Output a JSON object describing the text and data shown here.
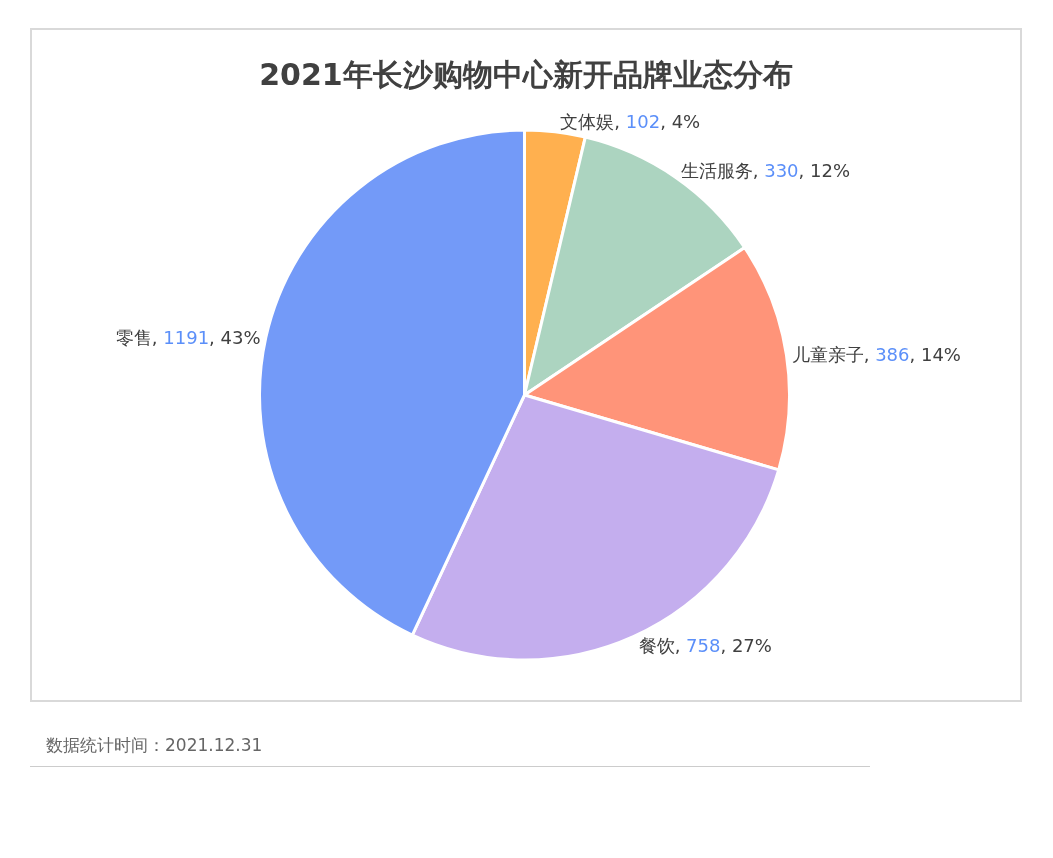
{
  "chart_data": {
    "type": "pie",
    "title": "2021年长沙购物中心新开品牌业态分布",
    "categories": [
      "文体娱",
      "生活服务",
      "儿童亲子",
      "餐饮",
      "零售"
    ],
    "values": [
      102,
      330,
      386,
      758,
      1191
    ],
    "colors": [
      "#ffb04f",
      "#acd4c0",
      "#ff9479",
      "#c4aeee",
      "#739af8"
    ],
    "value_labels": [
      ", 102, 4%",
      ", 330, 12%",
      ", 386, 14%",
      ", 758, 27%",
      ", 1191, 43%"
    ],
    "legend": false,
    "annotations": [
      "数据统计时间：2021.12.31"
    ]
  }
}
